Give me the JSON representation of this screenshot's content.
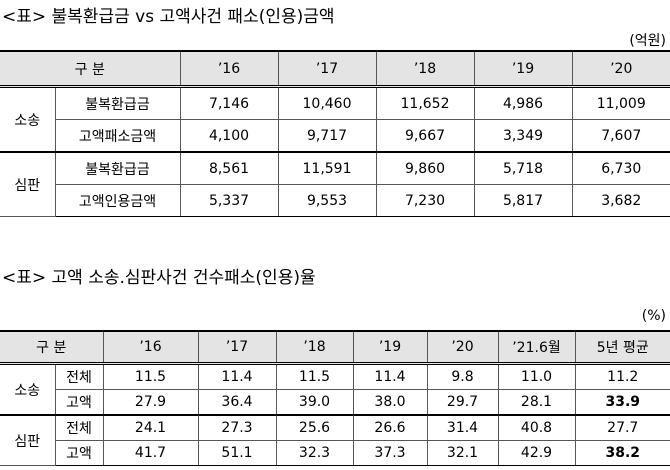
{
  "table1": {
    "title": "<표> 불복환급금 vs 고액사건 패소(인용)금액",
    "unit": "(억원)",
    "header": [
      "구 분",
      "’16",
      "’17",
      "’18",
      "’19",
      "’20"
    ],
    "groups": [
      {
        "label": "소송",
        "rows": [
          {
            "label": "불복환급금",
            "cells": [
              "7,146",
              "10,460",
              "11,652",
              "4,986",
              "11,009"
            ]
          },
          {
            "label": "고액패소금액",
            "cells": [
              "4,100",
              "9,717",
              "9,667",
              "3,349",
              "7,607"
            ]
          }
        ]
      },
      {
        "label": "심판",
        "rows": [
          {
            "label": "불복환급금",
            "cells": [
              "8,561",
              "11,591",
              "9,860",
              "5,718",
              "6,730"
            ]
          },
          {
            "label": "고액인용금액",
            "cells": [
              "5,337",
              "9,553",
              "7,230",
              "5,817",
              "3,682"
            ]
          }
        ]
      }
    ]
  },
  "table2": {
    "title": "<표> 고액 소송.심판사건 건수패소(인용)율",
    "unit": "(%)",
    "header": [
      "구 분",
      "’16",
      "’17",
      "’18",
      "’19",
      "’20",
      "’21.6월",
      "5년 평균"
    ],
    "groups": [
      {
        "label": "소송",
        "rows": [
          {
            "label": "전체",
            "cells": [
              "11.5",
              "11.4",
              "11.5",
              "11.4",
              "9.8",
              "11.0",
              "11.2"
            ]
          },
          {
            "label": "고액",
            "cells": [
              "27.9",
              "36.4",
              "39.0",
              "38.0",
              "29.7",
              "28.1",
              "33.9"
            ]
          }
        ]
      },
      {
        "label": "심판",
        "rows": [
          {
            "label": "전체",
            "cells": [
              "24.1",
              "27.3",
              "25.6",
              "26.6",
              "31.4",
              "40.8",
              "27.7"
            ]
          },
          {
            "label": "고액",
            "cells": [
              "41.7",
              "51.1",
              "32.3",
              "37.3",
              "32.1",
              "42.9",
              "38.2"
            ]
          }
        ]
      }
    ]
  }
}
